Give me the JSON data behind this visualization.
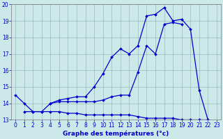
{
  "hours": [
    0,
    1,
    2,
    3,
    4,
    5,
    6,
    7,
    8,
    9,
    10,
    11,
    12,
    13,
    14,
    15,
    16,
    17,
    18,
    19,
    20,
    21,
    22,
    23
  ],
  "line1": [
    14.5,
    14.0,
    13.5,
    13.5,
    14.0,
    14.2,
    14.3,
    14.4,
    14.4,
    15.0,
    15.8,
    16.8,
    17.3,
    17.0,
    17.5,
    19.3,
    19.4,
    19.8,
    19.0,
    19.1,
    18.5,
    14.8,
    13.0,
    null
  ],
  "line2": [
    null,
    null,
    null,
    null,
    14.0,
    14.1,
    14.1,
    14.1,
    14.1,
    14.1,
    14.2,
    14.4,
    14.5,
    14.5,
    15.9,
    17.5,
    17.0,
    18.8,
    18.9,
    18.8,
    null,
    null,
    null,
    null
  ],
  "line3": [
    null,
    13.5,
    13.5,
    13.5,
    13.5,
    13.5,
    13.4,
    13.4,
    13.3,
    13.3,
    13.3,
    13.3,
    13.3,
    13.3,
    13.2,
    13.1,
    13.1,
    13.1,
    13.1,
    13.0,
    13.0,
    13.0,
    13.0,
    null
  ],
  "line_color": "#0000cc",
  "bg_color": "#cce8e8",
  "grid_color": "#99bbbb",
  "xlabel": "Graphe des températures (°c)",
  "xlim": [
    -0.5,
    23.5
  ],
  "ylim": [
    13,
    20
  ],
  "yticks": [
    13,
    14,
    15,
    16,
    17,
    18,
    19,
    20
  ],
  "xticks": [
    0,
    1,
    2,
    3,
    4,
    5,
    6,
    7,
    8,
    9,
    10,
    11,
    12,
    13,
    14,
    15,
    16,
    17,
    18,
    19,
    20,
    21,
    22,
    23
  ],
  "tick_fontsize": 5.5,
  "label_fontsize": 6.5
}
